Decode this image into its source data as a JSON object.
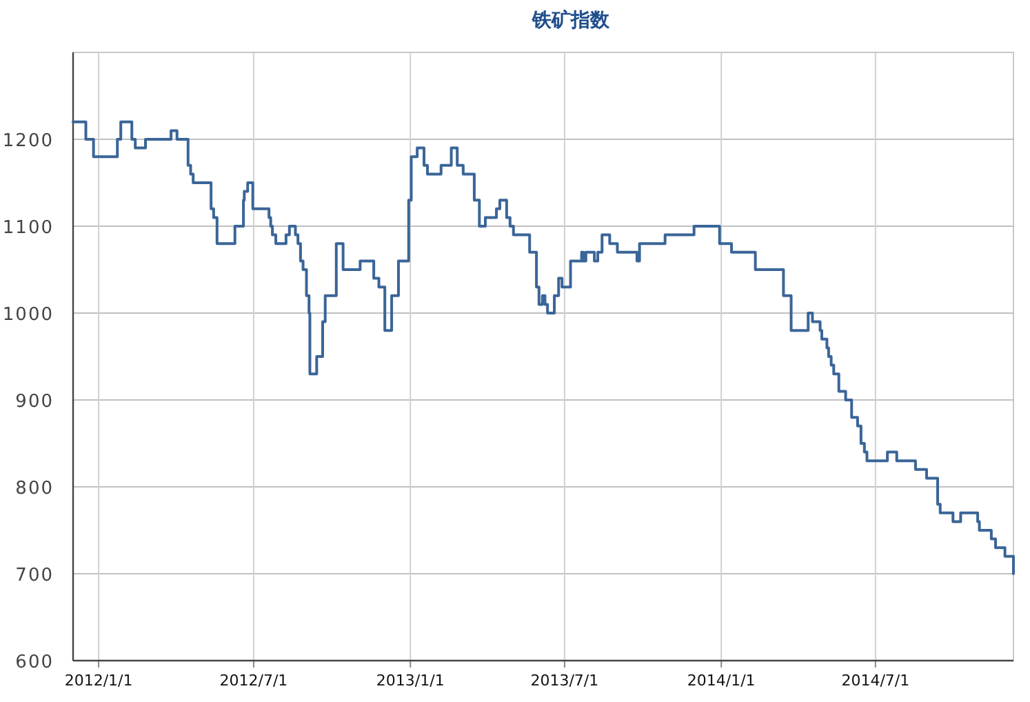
{
  "chart_data": {
    "type": "step",
    "title": "铁矿指数",
    "grid": true,
    "line_style": "solid",
    "xlim": [
      "2011-12-02",
      "2014-12-10"
    ],
    "ylim": [
      600,
      1300
    ],
    "yticks": [
      600,
      700,
      800,
      900,
      1000,
      1100,
      1200
    ],
    "xticks": [
      {
        "value": "2012-01-01",
        "label": "2012/1/1"
      },
      {
        "value": "2012-07-01",
        "label": "2012/7/1"
      },
      {
        "value": "2013-01-01",
        "label": "2013/1/1"
      },
      {
        "value": "2013-07-01",
        "label": "2013/7/1"
      },
      {
        "value": "2014-01-01",
        "label": "2014/1/1"
      },
      {
        "value": "2014-07-01",
        "label": "2014/7/1"
      }
    ],
    "series": [
      {
        "color": "#3a6598",
        "x": [
          "2011-12-02",
          "2011-12-17",
          "2011-12-26",
          "2012-01-23",
          "2012-01-27",
          "2012-02-09",
          "2012-02-13",
          "2012-02-25",
          "2012-03-26",
          "2012-04-02",
          "2012-04-15",
          "2012-04-18",
          "2012-04-21",
          "2012-05-12",
          "2012-05-15",
          "2012-05-19",
          "2012-06-09",
          "2012-06-19",
          "2012-06-20",
          "2012-06-24",
          "2012-06-30",
          "2012-07-19",
          "2012-07-21",
          "2012-07-23",
          "2012-07-27",
          "2012-08-08",
          "2012-08-12",
          "2012-08-19",
          "2012-08-22",
          "2012-08-25",
          "2012-08-28",
          "2012-09-01",
          "2012-09-04",
          "2012-09-05",
          "2012-09-13",
          "2012-09-20",
          "2012-09-23",
          "2012-10-06",
          "2012-10-14",
          "2012-11-03",
          "2012-11-19",
          "2012-11-25",
          "2012-12-02",
          "2012-12-10",
          "2012-12-18",
          "2012-12-30",
          "2013-01-02",
          "2013-01-09",
          "2013-01-17",
          "2013-01-21",
          "2013-02-06",
          "2013-02-18",
          "2013-02-25",
          "2013-03-04",
          "2013-03-17",
          "2013-03-23",
          "2013-03-30",
          "2013-04-12",
          "2013-04-16",
          "2013-04-24",
          "2013-04-28",
          "2013-05-02",
          "2013-05-21",
          "2013-05-29",
          "2013-06-01",
          "2013-06-05",
          "2013-06-08",
          "2013-06-11",
          "2013-06-19",
          "2013-06-24",
          "2013-06-28",
          "2013-07-08",
          "2013-07-21",
          "2013-07-23",
          "2013-07-26",
          "2013-08-05",
          "2013-08-09",
          "2013-08-14",
          "2013-08-23",
          "2013-09-01",
          "2013-09-24",
          "2013-09-27",
          "2013-10-27",
          "2013-11-30",
          "2013-12-30",
          "2014-01-13",
          "2014-02-10",
          "2014-03-15",
          "2014-03-24",
          "2014-04-13",
          "2014-04-18",
          "2014-04-27",
          "2014-04-29",
          "2014-05-05",
          "2014-05-07",
          "2014-05-10",
          "2014-05-13",
          "2014-05-19",
          "2014-05-27",
          "2014-06-03",
          "2014-06-10",
          "2014-06-14",
          "2014-06-18",
          "2014-06-21",
          "2014-07-15",
          "2014-07-26",
          "2014-08-17",
          "2014-08-30",
          "2014-09-12",
          "2014-09-15",
          "2014-09-30",
          "2014-10-09",
          "2014-10-29",
          "2014-10-31",
          "2014-11-14",
          "2014-11-19",
          "2014-11-30",
          "2014-12-10"
        ],
        "values": [
          1220,
          1200,
          1180,
          1200,
          1220,
          1200,
          1190,
          1200,
          1210,
          1200,
          1170,
          1160,
          1150,
          1120,
          1110,
          1080,
          1100,
          1130,
          1140,
          1150,
          1120,
          1110,
          1100,
          1090,
          1080,
          1090,
          1100,
          1090,
          1080,
          1060,
          1050,
          1020,
          1000,
          930,
          950,
          990,
          1020,
          1080,
          1050,
          1060,
          1040,
          1030,
          980,
          1020,
          1060,
          1130,
          1180,
          1190,
          1170,
          1160,
          1170,
          1190,
          1170,
          1160,
          1130,
          1100,
          1110,
          1120,
          1130,
          1110,
          1100,
          1090,
          1070,
          1030,
          1010,
          1020,
          1010,
          1000,
          1020,
          1040,
          1030,
          1060,
          1070,
          1060,
          1070,
          1060,
          1070,
          1090,
          1080,
          1070,
          1060,
          1080,
          1090,
          1100,
          1080,
          1070,
          1050,
          1020,
          980,
          1000,
          990,
          980,
          970,
          960,
          950,
          940,
          930,
          910,
          900,
          880,
          870,
          850,
          840,
          830,
          840,
          830,
          820,
          810,
          780,
          770,
          760,
          770,
          760,
          750,
          740,
          730,
          720,
          700
        ]
      }
    ]
  }
}
